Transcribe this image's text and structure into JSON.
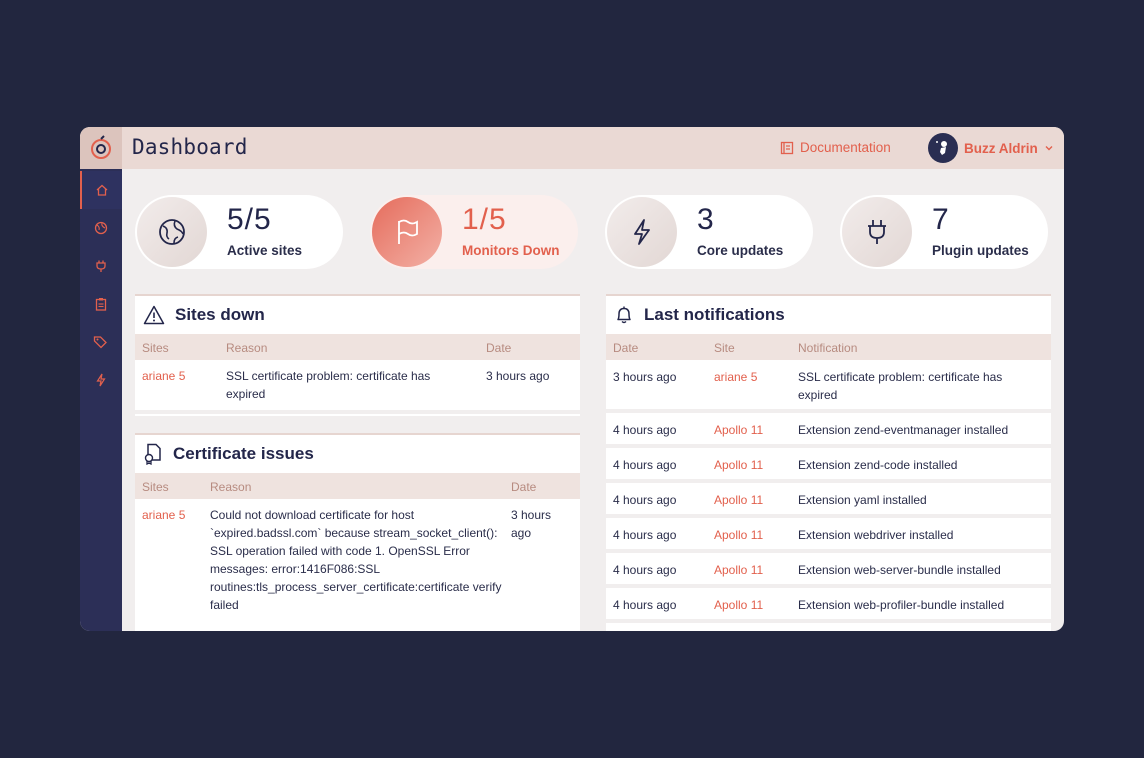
{
  "header": {
    "title": "Dashboard",
    "documentation_label": "Documentation",
    "user_name": "Buzz Aldrin"
  },
  "sidebar": {
    "items": [
      {
        "icon": "home-icon",
        "active": true
      },
      {
        "icon": "globe-icon"
      },
      {
        "icon": "plug-icon"
      },
      {
        "icon": "clipboard-icon"
      },
      {
        "icon": "tag-icon"
      },
      {
        "icon": "bolt-icon"
      }
    ]
  },
  "stats": [
    {
      "value": "5/5",
      "label": "Active sites",
      "icon": "globe-icon"
    },
    {
      "value": "1/5",
      "label": "Monitors Down",
      "icon": "flag-icon"
    },
    {
      "value": "3",
      "label": "Core updates",
      "icon": "bolt-icon"
    },
    {
      "value": "7",
      "label": "Plugin updates",
      "icon": "plug-icon"
    }
  ],
  "sites_down": {
    "title": "Sites down",
    "columns": [
      "Sites",
      "Reason",
      "Date"
    ],
    "rows": [
      {
        "site": "ariane 5",
        "reason": "SSL certificate problem: certificate has expired",
        "date": "3 hours ago"
      }
    ]
  },
  "certificate_issues": {
    "title": "Certificate issues",
    "columns": [
      "Sites",
      "Reason",
      "Date"
    ],
    "rows": [
      {
        "site": "ariane 5",
        "reason": "Could not download certificate for host `expired.badssl.com` because stream_socket_client(): SSL operation failed with code 1. OpenSSL Error messages: error:1416F086:SSL routines:tls_process_server_certificate:certificate verify failed",
        "date": "3 hours ago"
      }
    ]
  },
  "notifications": {
    "title": "Last notifications",
    "columns": [
      "Date",
      "Site",
      "Notification"
    ],
    "rows": [
      {
        "date": "3 hours ago",
        "site": "ariane 5",
        "text": "SSL certificate problem: certificate has expired"
      },
      {
        "date": "4 hours ago",
        "site": "Apollo 11",
        "text": "Extension zend-eventmanager installed"
      },
      {
        "date": "4 hours ago",
        "site": "Apollo 11",
        "text": "Extension zend-code installed"
      },
      {
        "date": "4 hours ago",
        "site": "Apollo 11",
        "text": "Extension yaml installed"
      },
      {
        "date": "4 hours ago",
        "site": "Apollo 11",
        "text": "Extension webdriver installed"
      },
      {
        "date": "4 hours ago",
        "site": "Apollo 11",
        "text": "Extension web-server-bundle installed"
      },
      {
        "date": "4 hours ago",
        "site": "Apollo 11",
        "text": "Extension web-profiler-bundle installed"
      }
    ]
  },
  "colors": {
    "accent": "#e2604d",
    "sidebar": "#2c2f57",
    "background": "#22263f"
  }
}
